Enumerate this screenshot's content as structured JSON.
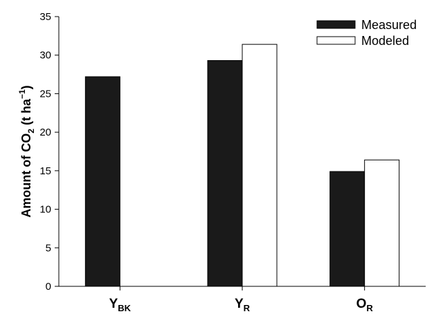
{
  "chart_data": {
    "type": "bar",
    "categories": [
      {
        "main": "Y",
        "sub": "BK"
      },
      {
        "main": "Y",
        "sub": "R"
      },
      {
        "main": "O",
        "sub": "R"
      }
    ],
    "series": [
      {
        "name": "Measured",
        "color": "#1a1a1a",
        "values": [
          27.2,
          29.3,
          14.9
        ]
      },
      {
        "name": "Modeled",
        "color": "#ffffff",
        "values": [
          null,
          31.4,
          16.4
        ]
      }
    ],
    "ylabel": {
      "part1": "Amount of CO",
      "sub": "2",
      "part2": " (t ha",
      "sup": "−1",
      "part3": ")"
    },
    "ylim": [
      0,
      35
    ],
    "yticks": [
      0,
      5,
      10,
      15,
      20,
      25,
      30,
      35
    ],
    "grid": false,
    "legend_position": "top-right"
  }
}
